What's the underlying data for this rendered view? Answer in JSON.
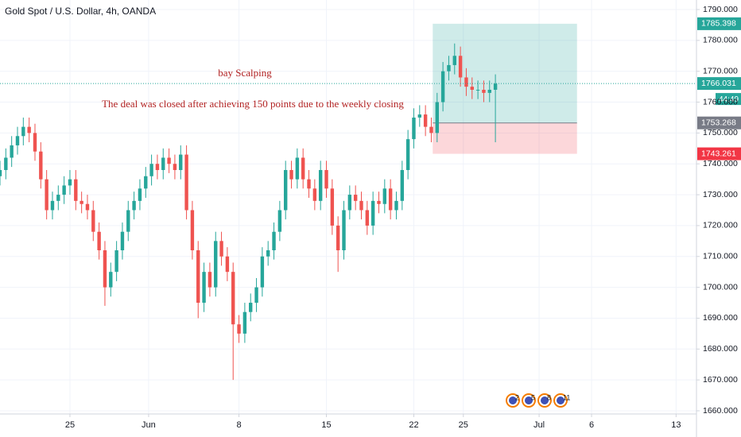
{
  "chart_data": {
    "type": "candlestick",
    "title": "Gold Spot / U.S. Dollar, 4h, OANDA",
    "annotations": [
      "bay Scalping",
      "The deal was closed after achieving 150 points due to the weekly closing"
    ],
    "up_color": "#26a69a",
    "down_color": "#ef5350",
    "x": [
      0,
      2,
      4,
      6,
      8,
      10,
      12,
      14,
      16,
      18,
      20,
      22,
      24,
      26,
      28,
      30,
      32,
      34,
      36,
      38,
      40,
      42,
      44,
      46,
      48,
      50,
      52,
      54,
      56,
      58,
      60,
      62,
      64,
      66,
      68,
      70,
      72,
      74,
      76,
      78,
      80,
      82,
      84,
      86,
      88,
      90,
      92,
      94,
      96,
      98,
      100,
      102,
      104,
      106,
      108,
      110,
      112,
      114,
      116,
      118,
      120,
      122,
      124,
      126,
      128,
      130,
      132,
      134,
      136,
      138,
      140,
      142,
      144,
      146,
      148,
      150,
      152,
      154,
      156,
      158,
      160,
      162,
      164,
      166,
      168,
      170
    ],
    "open": [
      1736,
      1738,
      1742,
      1746,
      1749,
      1752,
      1750,
      1744,
      1735,
      1725,
      1728,
      1730,
      1733,
      1735,
      1728,
      1727,
      1725,
      1718,
      1712,
      1700,
      1705,
      1712,
      1718,
      1725,
      1728,
      1732,
      1736,
      1740,
      1738,
      1742,
      1740,
      1738,
      1743,
      1725,
      1712,
      1695,
      1705,
      1700,
      1715,
      1710,
      1705,
      1688,
      1685,
      1692,
      1695,
      1700,
      1710,
      1712,
      1718,
      1725,
      1738,
      1735,
      1742,
      1735,
      1732,
      1728,
      1738,
      1732,
      1720,
      1712,
      1725,
      1730,
      1728,
      1725,
      1720,
      1728,
      1727,
      1732,
      1725,
      1728,
      1738,
      1748,
      1755,
      1756,
      1752,
      1750,
      1760,
      1770,
      1772,
      1775,
      1768,
      1765,
      1764,
      1764,
      1763,
      1764
    ],
    "high": [
      1741,
      1745,
      1749,
      1752,
      1755,
      1755,
      1753,
      1747,
      1738,
      1731,
      1733,
      1736,
      1738,
      1738,
      1731,
      1730,
      1728,
      1721,
      1715,
      1708,
      1715,
      1721,
      1728,
      1731,
      1735,
      1739,
      1743,
      1743,
      1745,
      1745,
      1743,
      1746,
      1746,
      1728,
      1715,
      1708,
      1708,
      1718,
      1718,
      1713,
      1708,
      1691,
      1695,
      1698,
      1703,
      1713,
      1715,
      1721,
      1728,
      1741,
      1741,
      1745,
      1745,
      1738,
      1735,
      1741,
      1741,
      1735,
      1723,
      1728,
      1733,
      1733,
      1731,
      1728,
      1731,
      1731,
      1735,
      1735,
      1731,
      1741,
      1751,
      1758,
      1759,
      1759,
      1755,
      1763,
      1773,
      1775,
      1779,
      1778,
      1771,
      1768,
      1767,
      1767,
      1767,
      1769
    ],
    "low": [
      1733,
      1735,
      1739,
      1743,
      1746,
      1747,
      1741,
      1732,
      1722,
      1722,
      1725,
      1727,
      1730,
      1725,
      1724,
      1722,
      1715,
      1709,
      1694,
      1697,
      1702,
      1709,
      1715,
      1722,
      1725,
      1729,
      1733,
      1735,
      1735,
      1737,
      1735,
      1735,
      1722,
      1709,
      1690,
      1692,
      1697,
      1697,
      1707,
      1702,
      1670,
      1682,
      1682,
      1689,
      1692,
      1697,
      1707,
      1709,
      1715,
      1722,
      1732,
      1732,
      1732,
      1729,
      1725,
      1725,
      1729,
      1717,
      1705,
      1709,
      1722,
      1725,
      1722,
      1717,
      1717,
      1724,
      1724,
      1722,
      1722,
      1725,
      1735,
      1745,
      1752,
      1749,
      1747,
      1747,
      1757,
      1767,
      1769,
      1765,
      1762,
      1761,
      1761,
      1760,
      1760,
      1747
    ],
    "close": [
      1738,
      1742,
      1746,
      1749,
      1752,
      1750,
      1744,
      1735,
      1725,
      1728,
      1730,
      1733,
      1735,
      1728,
      1727,
      1725,
      1718,
      1712,
      1700,
      1705,
      1712,
      1718,
      1725,
      1728,
      1732,
      1736,
      1740,
      1738,
      1742,
      1740,
      1738,
      1743,
      1725,
      1712,
      1695,
      1705,
      1700,
      1715,
      1710,
      1705,
      1688,
      1685,
      1692,
      1695,
      1700,
      1710,
      1712,
      1718,
      1725,
      1738,
      1735,
      1742,
      1735,
      1732,
      1728,
      1738,
      1732,
      1720,
      1712,
      1725,
      1730,
      1728,
      1725,
      1720,
      1728,
      1727,
      1732,
      1725,
      1728,
      1738,
      1748,
      1755,
      1756,
      1752,
      1750,
      1760,
      1770,
      1772,
      1775,
      1768,
      1765,
      1764,
      1764,
      1763,
      1764,
      1766
    ],
    "xlim": [
      0,
      239
    ],
    "ylim": [
      1660,
      1790
    ],
    "xticks": [
      {
        "value": 24,
        "label": "25"
      },
      {
        "value": 51,
        "label": "Jun"
      },
      {
        "value": 82,
        "label": "8"
      },
      {
        "value": 112,
        "label": "15"
      },
      {
        "value": 142,
        "label": "22"
      },
      {
        "value": 159,
        "label": "25"
      },
      {
        "value": 185,
        "label": "Jul"
      },
      {
        "value": 203,
        "label": "6"
      },
      {
        "value": 232,
        "label": "13"
      }
    ],
    "yticks": [
      {
        "value": 1660,
        "label": "1660.000"
      },
      {
        "value": 1670,
        "label": "1670.000"
      },
      {
        "value": 1680,
        "label": "1680.000"
      },
      {
        "value": 1690,
        "label": "1690.000"
      },
      {
        "value": 1700,
        "label": "1700.000"
      },
      {
        "value": 1710,
        "label": "1710.000"
      },
      {
        "value": 1720,
        "label": "1720.000"
      },
      {
        "value": 1730,
        "label": "1730.000"
      },
      {
        "value": 1740,
        "label": "1740.000"
      },
      {
        "value": 1750,
        "label": "1750.000"
      },
      {
        "value": 1760,
        "label": "1760.000"
      },
      {
        "value": 1770,
        "label": "1770.000"
      },
      {
        "value": 1780,
        "label": "1780.000"
      },
      {
        "value": 1790,
        "label": "1790.000"
      }
    ],
    "grid": true,
    "position": {
      "x_start": 148.5,
      "x_end": 198,
      "entry": 1753.268,
      "target": 1785.398,
      "stop": 1743.261,
      "target_color": "#26a69a",
      "entry_color": "#787b86",
      "stop_color": "#f23645"
    },
    "last_price": 1766.031,
    "countdown": "44:49",
    "event_labels": [
      "2",
      "5",
      "8",
      "11"
    ]
  }
}
